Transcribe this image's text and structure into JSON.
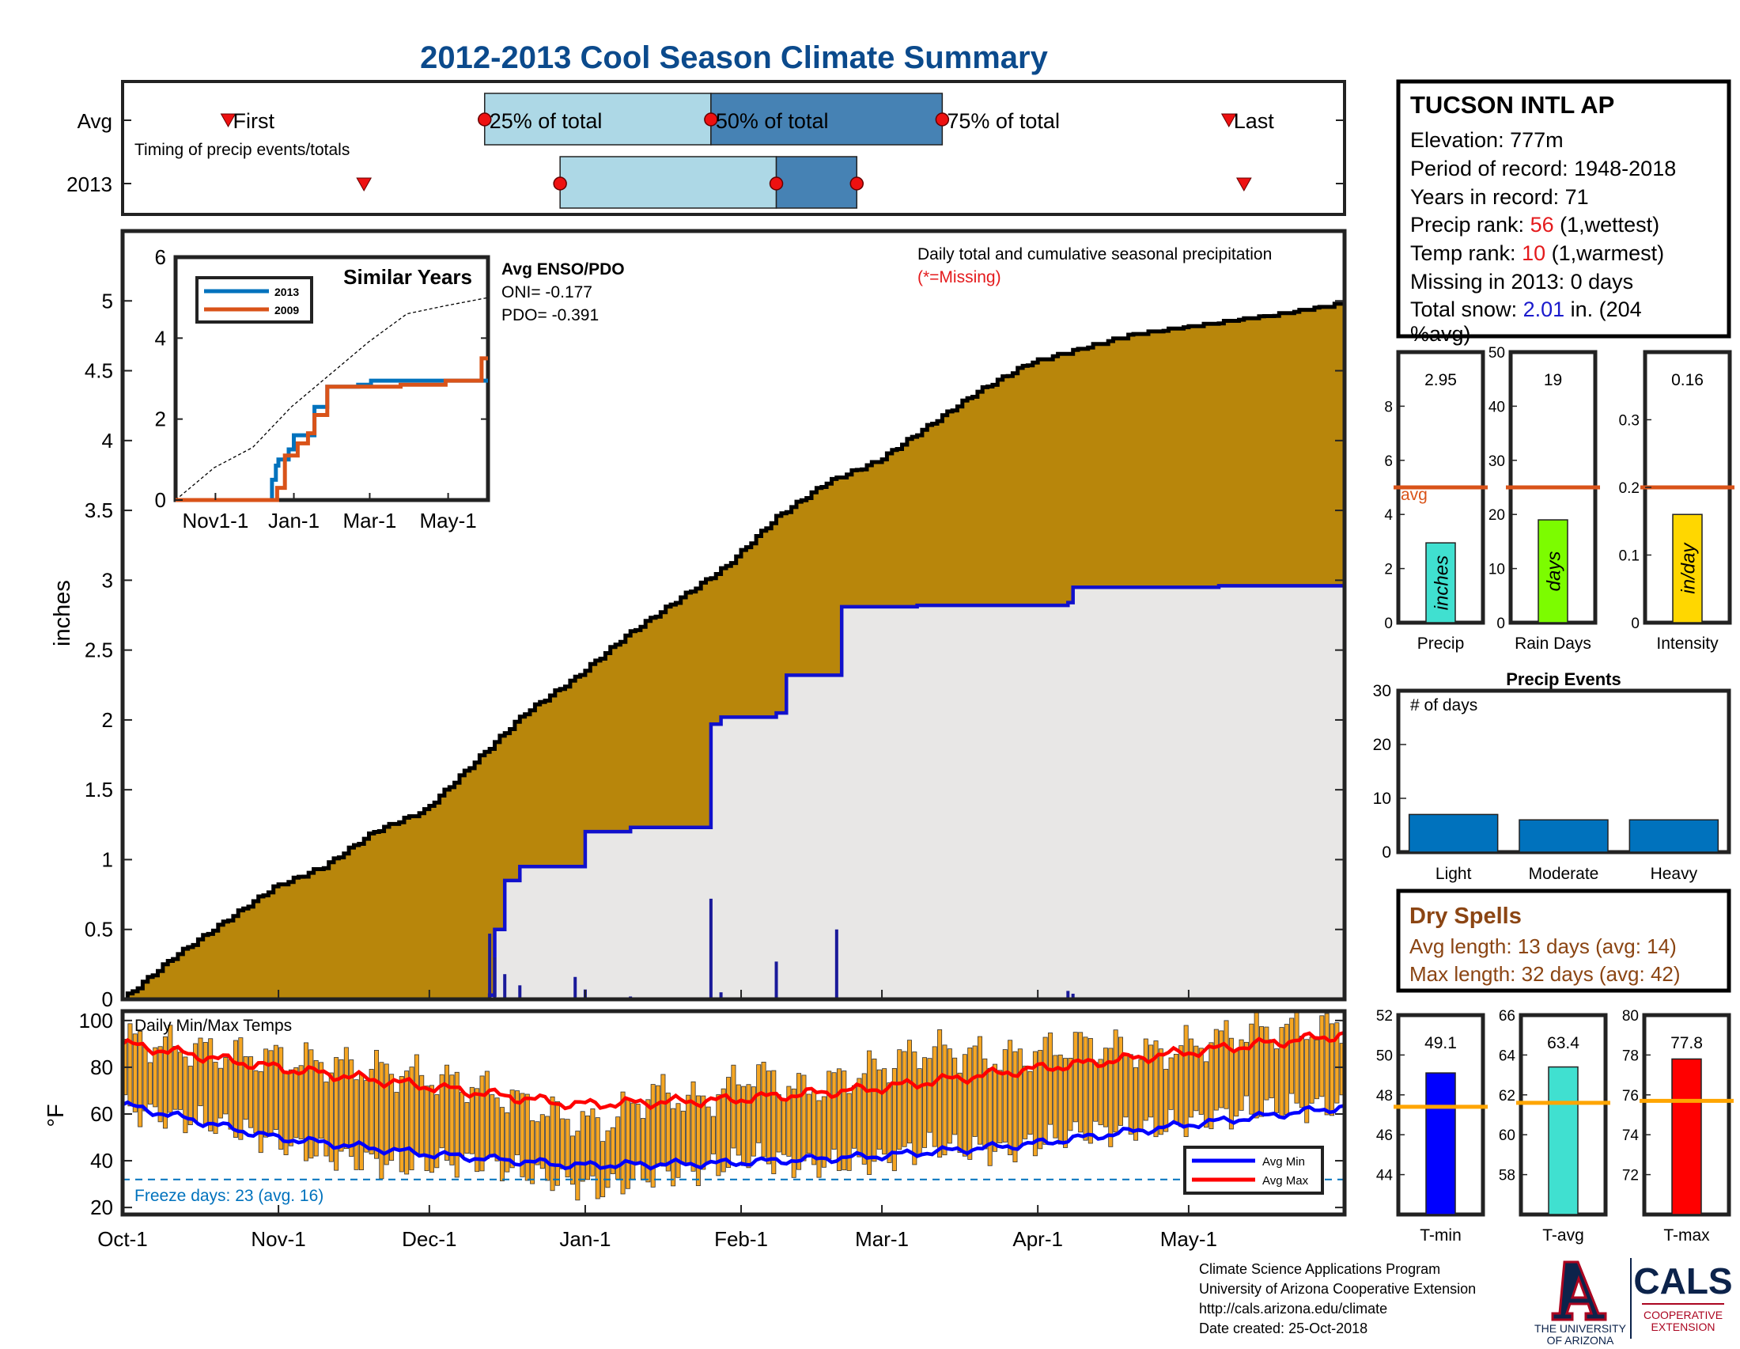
{
  "title": "2012-2013 Cool Season Climate Summary",
  "colors": {
    "title": "#0b4a8c",
    "cum_avg_fill": "#b8860b",
    "cum_2013_fill": "#e8e7e6",
    "cum_2013_line": "#1111cc",
    "avg_line": "#d95319",
    "red_text": "#e41a1c",
    "blue_text": "#1a1acc",
    "dry_text": "#8b4513",
    "tmin": "#0000ff",
    "tavg": "#40e0d0",
    "tmax": "#ff0000",
    "temp_bar": "#f5a623",
    "light_blue": "#add8e6",
    "steel_blue": "#4682b4",
    "event_bar": "#0072bd"
  },
  "timing": {
    "row_avg_label": "Avg",
    "row_2013_label": "2013",
    "note": "Timing of precip events/totals",
    "avg_labels": {
      "first": "First",
      "p25": "25% of total",
      "p50": "50% of total",
      "p75": "75% of total",
      "last": "Last"
    },
    "avg_days": {
      "first": 21,
      "p25": 72,
      "p50": 117,
      "p75": 163,
      "last": 220
    },
    "y2013_days": {
      "first": 48,
      "p25": 87,
      "p50": 130,
      "p75": 146,
      "last": 223
    }
  },
  "station": {
    "name": "TUCSON INTL AP",
    "elevation": "Elevation: 777m",
    "period": "Period of record: 1948-2018",
    "years": "Years in record: 71",
    "precip_rank_label": "Precip rank: ",
    "precip_rank": "56",
    "precip_rank_note": " (1,wettest)",
    "temp_rank_label": "Temp rank: ",
    "temp_rank": "10",
    "temp_rank_note": " (1,warmest)",
    "missing": "Missing in 2013: 0 days",
    "snow_label": "Total snow: ",
    "snow_value": "2.01",
    "snow_note_1": " in. (204",
    "snow_note_2": "%avg)"
  },
  "chart_data": [
    {
      "id": "cumulative",
      "type": "area",
      "title": "Daily total and cumulative seasonal precipitation",
      "missing_note": "(*=Missing)",
      "ylabel": "inches",
      "ylim": [
        0,
        5.5
      ],
      "yticks": [
        "0",
        "0.5",
        "1",
        "1.5",
        "2",
        "2.5",
        "3",
        "3.5",
        "4",
        "4.5",
        "5"
      ],
      "xlim_days": [
        0,
        243
      ],
      "xticks": [
        {
          "day": 0,
          "label": "Oct-1"
        },
        {
          "day": 31,
          "label": "Nov-1"
        },
        {
          "day": 61,
          "label": "Dec-1"
        },
        {
          "day": 92,
          "label": "Jan-1"
        },
        {
          "day": 123,
          "label": "Feb-1"
        },
        {
          "day": 151,
          "label": "Mar-1"
        },
        {
          "day": 182,
          "label": "Apr-1"
        },
        {
          "day": 212,
          "label": "May-1"
        }
      ],
      "avg_cumulative": {
        "name": "Average",
        "days": [
          0,
          10,
          20,
          30,
          40,
          50,
          60,
          70,
          80,
          90,
          100,
          110,
          120,
          130,
          140,
          150,
          160,
          170,
          180,
          190,
          200,
          210,
          220,
          230,
          243
        ],
        "values": [
          0,
          0.3,
          0.55,
          0.8,
          0.95,
          1.2,
          1.35,
          1.7,
          2.05,
          2.3,
          2.6,
          2.85,
          3.1,
          3.45,
          3.7,
          3.85,
          4.1,
          4.35,
          4.55,
          4.65,
          4.75,
          4.8,
          4.85,
          4.9,
          4.98
        ]
      },
      "cum_2013_steps": {
        "name": "2013",
        "days": [
          0,
          39,
          73,
          74,
          76,
          79,
          90,
          92,
          101,
          117,
          117,
          119,
          130,
          132,
          142,
          143,
          151,
          158,
          188,
          189,
          218,
          243
        ],
        "values": [
          0,
          0,
          0.03,
          0.5,
          0.85,
          0.95,
          0.95,
          1.2,
          1.23,
          1.25,
          1.97,
          2.02,
          2.05,
          2.32,
          2.32,
          2.81,
          2.81,
          2.82,
          2.84,
          2.95,
          2.96,
          2.96
        ]
      },
      "daily_2013": {
        "days": [
          73,
          74,
          76,
          79,
          90,
          92,
          101,
          117,
          119,
          130,
          142,
          188,
          189
        ],
        "values": [
          0.47,
          0.3,
          0.18,
          0.1,
          0.16,
          0.07,
          0.02,
          0.72,
          0.05,
          0.27,
          0.5,
          0.06,
          0.04
        ]
      }
    },
    {
      "id": "similar-years",
      "type": "line",
      "title": "Similar Years",
      "ylim": [
        0,
        6
      ],
      "yticks": [
        "0",
        "2",
        "4",
        "6"
      ],
      "xticks": [
        {
          "day": 31,
          "label": "Nov1-1"
        },
        {
          "day": 92,
          "label": "Jan-1"
        },
        {
          "day": 151,
          "label": "Mar-1"
        },
        {
          "day": 212,
          "label": "May-1"
        }
      ],
      "series": [
        {
          "name": "2013",
          "days": [
            0,
            72,
            75,
            78,
            80,
            88,
            92,
            101,
            108,
            116,
            118,
            130,
            142,
            152,
            243
          ],
          "values": [
            0,
            0,
            0.5,
            0.85,
            1.0,
            1.25,
            1.6,
            1.6,
            2.3,
            2.3,
            2.8,
            2.8,
            2.85,
            2.95,
            2.95
          ]
        },
        {
          "name": "2009",
          "days": [
            0,
            58,
            79,
            85,
            95,
            103,
            108,
            118,
            135,
            175,
            190,
            210,
            236,
            238,
            243
          ],
          "values": [
            0,
            0,
            0.3,
            1.1,
            1.4,
            1.65,
            2.1,
            2.8,
            2.8,
            2.85,
            2.85,
            2.95,
            2.95,
            3.5,
            3.5
          ]
        }
      ],
      "avg_dashed": {
        "days": [
          0,
          30,
          60,
          90,
          120,
          150,
          180,
          210,
          243
        ],
        "values": [
          0,
          0.8,
          1.3,
          2.3,
          3.1,
          3.9,
          4.6,
          4.8,
          5.0
        ]
      },
      "enso_title": "Avg ENSO/PDO",
      "oni": "ONI= -0.177",
      "pdo": "PDO= -0.391"
    },
    {
      "id": "precip-bars",
      "type": "bar",
      "panels": [
        {
          "label": "Precip",
          "value": 2.95,
          "value_text": "2.95",
          "avg": 5.0,
          "ylim": [
            0,
            10
          ],
          "yticks": [
            "0",
            "2",
            "4",
            "6",
            "8"
          ],
          "unit": "inches",
          "color": "#40e0d0",
          "avg_label": "avg"
        },
        {
          "label": "Rain Days",
          "value": 19,
          "value_text": "19",
          "avg": 25,
          "ylim": [
            0,
            50
          ],
          "yticks": [
            "0",
            "10",
            "20",
            "30",
            "40",
            "50"
          ],
          "unit": "days",
          "color": "#7cfc00"
        },
        {
          "label": "Intensity",
          "value": 0.16,
          "value_text": "0.16",
          "avg": 0.2,
          "ylim": [
            0,
            0.4
          ],
          "yticks": [
            "0",
            "0.1",
            "0.2",
            "0.3"
          ],
          "unit": "in/day",
          "color": "#ffd700"
        }
      ]
    },
    {
      "id": "precip-events",
      "type": "bar",
      "title": "Precip Events",
      "ylabel": "# of days",
      "ylim": [
        0,
        30
      ],
      "yticks": [
        "0",
        "10",
        "20",
        "30"
      ],
      "categories": [
        "Light",
        "Moderate",
        "Heavy"
      ],
      "values": [
        7,
        6,
        6
      ]
    },
    {
      "id": "temps",
      "type": "bar",
      "title": "Daily Min/Max Temps",
      "ylabel": "°F",
      "ylim": [
        17,
        104
      ],
      "yticks": [
        "20",
        "40",
        "60",
        "80",
        "100"
      ],
      "freeze_line": 32,
      "freeze_label": "Freeze days: 23 (avg. 16)",
      "legend": [
        "Avg Min",
        "Avg Max"
      ],
      "avg_max": {
        "days": [
          0,
          30,
          60,
          90,
          120,
          150,
          180,
          210,
          243
        ],
        "values": [
          90,
          80,
          72,
          64,
          66,
          71,
          79,
          86,
          94
        ]
      },
      "avg_min": {
        "days": [
          0,
          30,
          60,
          90,
          120,
          150,
          180,
          210,
          243
        ],
        "values": [
          64,
          50,
          43,
          38,
          39,
          42,
          47,
          55,
          63
        ]
      },
      "daily_highs_anchor": {
        "days": [
          0,
          20,
          40,
          55,
          70,
          85,
          95,
          105,
          115,
          125,
          135,
          150,
          160,
          175,
          190,
          205,
          225,
          243
        ],
        "values": [
          92,
          86,
          82,
          78,
          72,
          60,
          55,
          70,
          65,
          78,
          70,
          80,
          88,
          84,
          90,
          86,
          96,
          97
        ]
      },
      "daily_lows_anchor": {
        "days": [
          0,
          20,
          40,
          55,
          70,
          85,
          95,
          105,
          115,
          125,
          135,
          150,
          160,
          175,
          190,
          205,
          225,
          243
        ],
        "values": [
          62,
          55,
          42,
          38,
          40,
          32,
          28,
          34,
          36,
          42,
          38,
          40,
          46,
          44,
          52,
          54,
          62,
          64
        ]
      }
    },
    {
      "id": "temp-bars",
      "type": "bar",
      "panels": [
        {
          "label": "T-min",
          "value": 49.1,
          "value_text": "49.1",
          "avg": 47.4,
          "ylim": [
            42,
            52
          ],
          "yticks": [
            "44",
            "46",
            "48",
            "50",
            "52"
          ],
          "color": "#0000ff"
        },
        {
          "label": "T-avg",
          "value": 63.4,
          "value_text": "63.4",
          "avg": 61.6,
          "ylim": [
            56,
            66
          ],
          "yticks": [
            "58",
            "60",
            "62",
            "64",
            "66"
          ],
          "color": "#40e0d0"
        },
        {
          "label": "T-max",
          "value": 77.8,
          "value_text": "77.8",
          "avg": 75.7,
          "ylim": [
            70,
            80
          ],
          "yticks": [
            "72",
            "74",
            "76",
            "78",
            "80"
          ],
          "color": "#ff0000"
        }
      ]
    }
  ],
  "dry_spells": {
    "title": "Dry Spells",
    "avg_length": "Avg length: 13 days (avg: 14)",
    "max_length": "Max length: 32 days (avg: 42)"
  },
  "footer": {
    "line1": "Climate Science Applications Program",
    "line2": "University of Arizona Cooperative Extension",
    "line3": "http://cals.arizona.edu/climate",
    "line4": " Date created: 25-Oct-2018",
    "ua_line1": "THE UNIVERSITY",
    "ua_line2": "OF ARIZONA",
    "cals": "CALS",
    "cals_sub1": "COOPERATIVE",
    "cals_sub2": "EXTENSION"
  }
}
